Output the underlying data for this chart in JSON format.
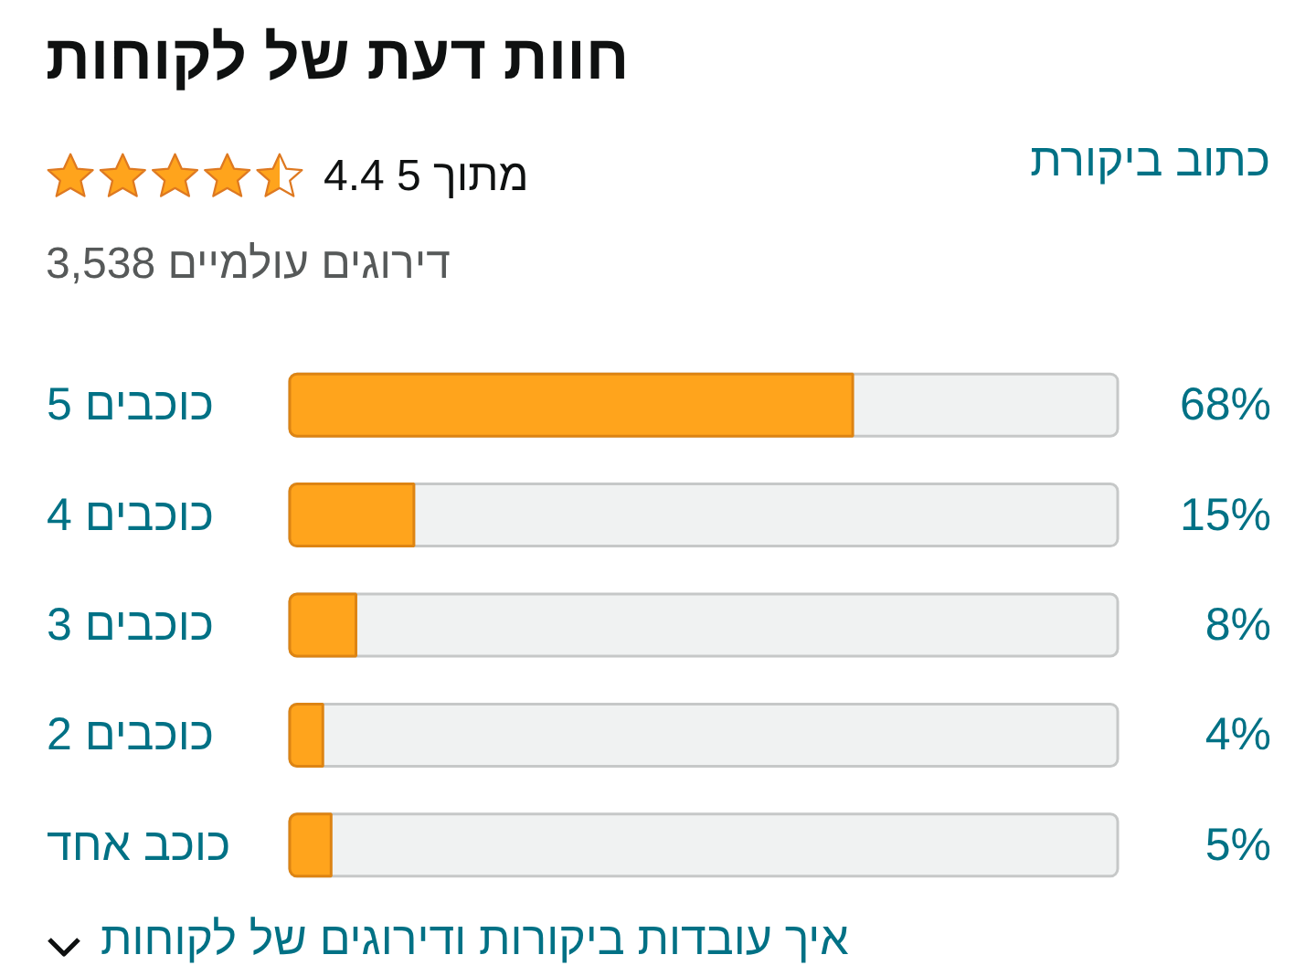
{
  "chart_data": {
    "type": "bar",
    "orientation": "horizontal",
    "title": "חוות דעת של לקוחות",
    "subtitle": "4.4 מתוך 5",
    "annotations": [
      "3,538 דירוגים עולמיים",
      "כתוב ביקורת",
      "איך עובדות ביקורות ודירוגים של לקוחות"
    ],
    "categories": [
      "5 כוכבים",
      "4 כוכבים",
      "3 כוכבים",
      "2 כוכבים",
      "כוכב אחד"
    ],
    "values": [
      68,
      15,
      8,
      4,
      5
    ],
    "value_labels": [
      "68%",
      "15%",
      "8%",
      "4%",
      "5%"
    ],
    "color": "#ffa41c",
    "xlim": [
      0,
      100
    ],
    "tick_labels": "y"
  }
}
